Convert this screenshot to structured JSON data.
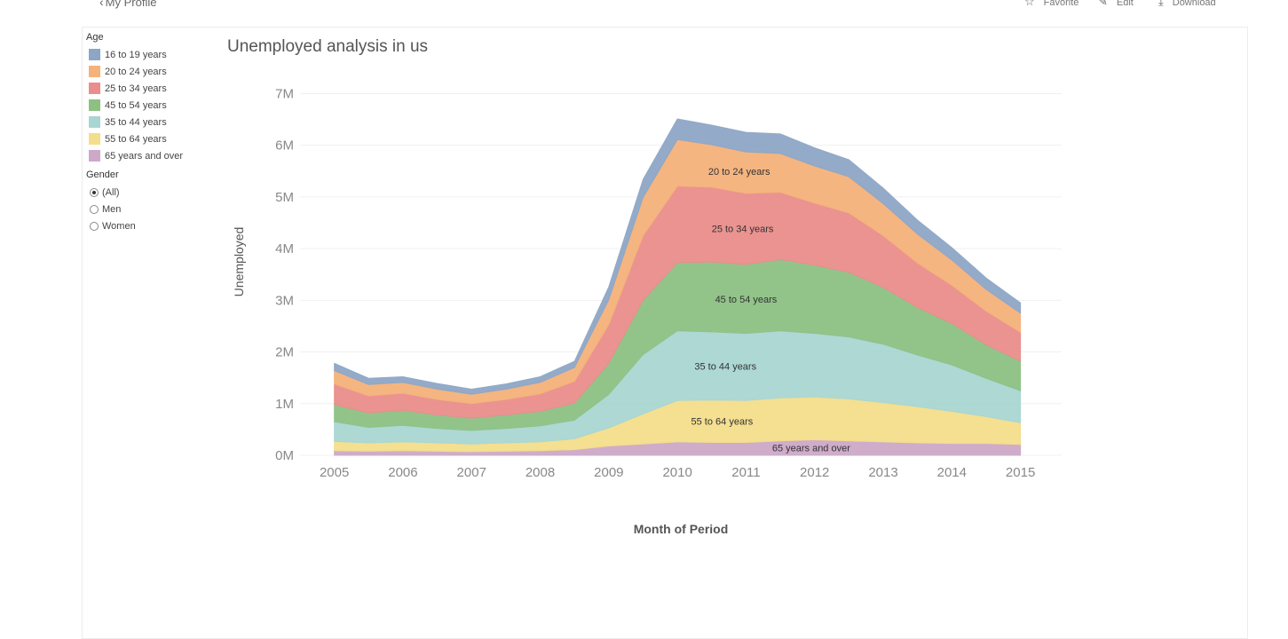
{
  "header": {
    "back_label": "My Profile",
    "favorite_label": "Favorite",
    "edit_label": "Edit",
    "download_label": "Download"
  },
  "legend": {
    "age_title": "Age",
    "age_items": [
      {
        "label": "16 to 19 years",
        "color": "#8EA6C6"
      },
      {
        "label": "20 to 24 years",
        "color": "#F5B27A"
      },
      {
        "label": "25 to 34 years",
        "color": "#E98E8C"
      },
      {
        "label": "45 to 54 years",
        "color": "#8DC184"
      },
      {
        "label": "35 to 44 years",
        "color": "#A9D6D2"
      },
      {
        "label": "55 to 64 years",
        "color": "#F5DE8B"
      },
      {
        "label": "65 years and over",
        "color": "#CDA8C8"
      }
    ],
    "gender_title": "Gender",
    "gender_options": [
      "(All)",
      "Men",
      "Women"
    ],
    "gender_selected": "(All)"
  },
  "chart_data": {
    "type": "area",
    "title": "Unemployed analysis in us",
    "xlabel": "Month of Period",
    "ylabel": "Unemployed",
    "x_ticks": [
      "2005",
      "2006",
      "2007",
      "2008",
      "2009",
      "2010",
      "2011",
      "2012",
      "2013",
      "2014",
      "2015"
    ],
    "y_ticks": [
      "0M",
      "1M",
      "2M",
      "3M",
      "4M",
      "5M",
      "6M",
      "7M"
    ],
    "ylim": [
      0,
      7300000
    ],
    "xlim": [
      2004.5,
      2015.6
    ],
    "grid": true,
    "x": [
      2005.0,
      2005.5,
      2006.0,
      2006.5,
      2007.0,
      2007.5,
      2008.0,
      2008.5,
      2009.0,
      2009.5,
      2010.0,
      2010.5,
      2011.0,
      2011.5,
      2012.0,
      2012.5,
      2013.0,
      2013.5,
      2014.0,
      2014.5,
      2015.0
    ],
    "series": [
      {
        "name": "65 years and over",
        "values": [
          90000,
          80000,
          90000,
          80000,
          70000,
          80000,
          90000,
          110000,
          180000,
          220000,
          260000,
          250000,
          250000,
          280000,
          300000,
          280000,
          260000,
          240000,
          230000,
          230000,
          210000
        ]
      },
      {
        "name": "55 to 64 years",
        "values": [
          180000,
          160000,
          170000,
          160000,
          150000,
          160000,
          170000,
          210000,
          350000,
          580000,
          800000,
          820000,
          810000,
          830000,
          830000,
          810000,
          760000,
          700000,
          620000,
          520000,
          420000
        ]
      },
      {
        "name": "35 to 44 years",
        "values": [
          380000,
          300000,
          320000,
          280000,
          260000,
          280000,
          310000,
          360000,
          650000,
          1150000,
          1350000,
          1320000,
          1300000,
          1300000,
          1230000,
          1200000,
          1130000,
          1000000,
          900000,
          740000,
          620000
        ]
      },
      {
        "name": "45 to 54 years",
        "values": [
          330000,
          280000,
          290000,
          260000,
          240000,
          260000,
          280000,
          330000,
          600000,
          1050000,
          1320000,
          1350000,
          1330000,
          1380000,
          1320000,
          1250000,
          1100000,
          920000,
          800000,
          650000,
          570000
        ]
      },
      {
        "name": "25 to 34 years",
        "values": [
          400000,
          330000,
          330000,
          300000,
          280000,
          300000,
          340000,
          420000,
          750000,
          1250000,
          1480000,
          1450000,
          1380000,
          1300000,
          1200000,
          1150000,
          1000000,
          860000,
          740000,
          650000,
          560000
        ]
      },
      {
        "name": "20 to 24 years",
        "values": [
          260000,
          220000,
          210000,
          200000,
          180000,
          200000,
          220000,
          270000,
          480000,
          740000,
          900000,
          820000,
          800000,
          750000,
          720000,
          700000,
          620000,
          560000,
          490000,
          420000,
          370000
        ]
      },
      {
        "name": "16 to 19 years",
        "values": [
          140000,
          120000,
          110000,
          110000,
          100000,
          100000,
          110000,
          120000,
          250000,
          350000,
          400000,
          380000,
          380000,
          380000,
          350000,
          330000,
          300000,
          270000,
          240000,
          220000,
          200000
        ]
      }
    ],
    "annotations": [
      {
        "text": "20 to 24 years",
        "series": "20 to 24 years",
        "x": 2010.9
      },
      {
        "text": "25 to 34 years",
        "series": "25 to 34 years",
        "x": 2010.95
      },
      {
        "text": "45 to 54 years",
        "series": "45 to 54 years",
        "x": 2011.0
      },
      {
        "text": "35 to 44 years",
        "series": "35 to 44 years",
        "x": 2010.7
      },
      {
        "text": "55 to 64 years",
        "series": "55 to 64 years",
        "x": 2010.65
      },
      {
        "text": "65 years and over",
        "series": "65 years and over",
        "x": 2011.95
      }
    ]
  }
}
